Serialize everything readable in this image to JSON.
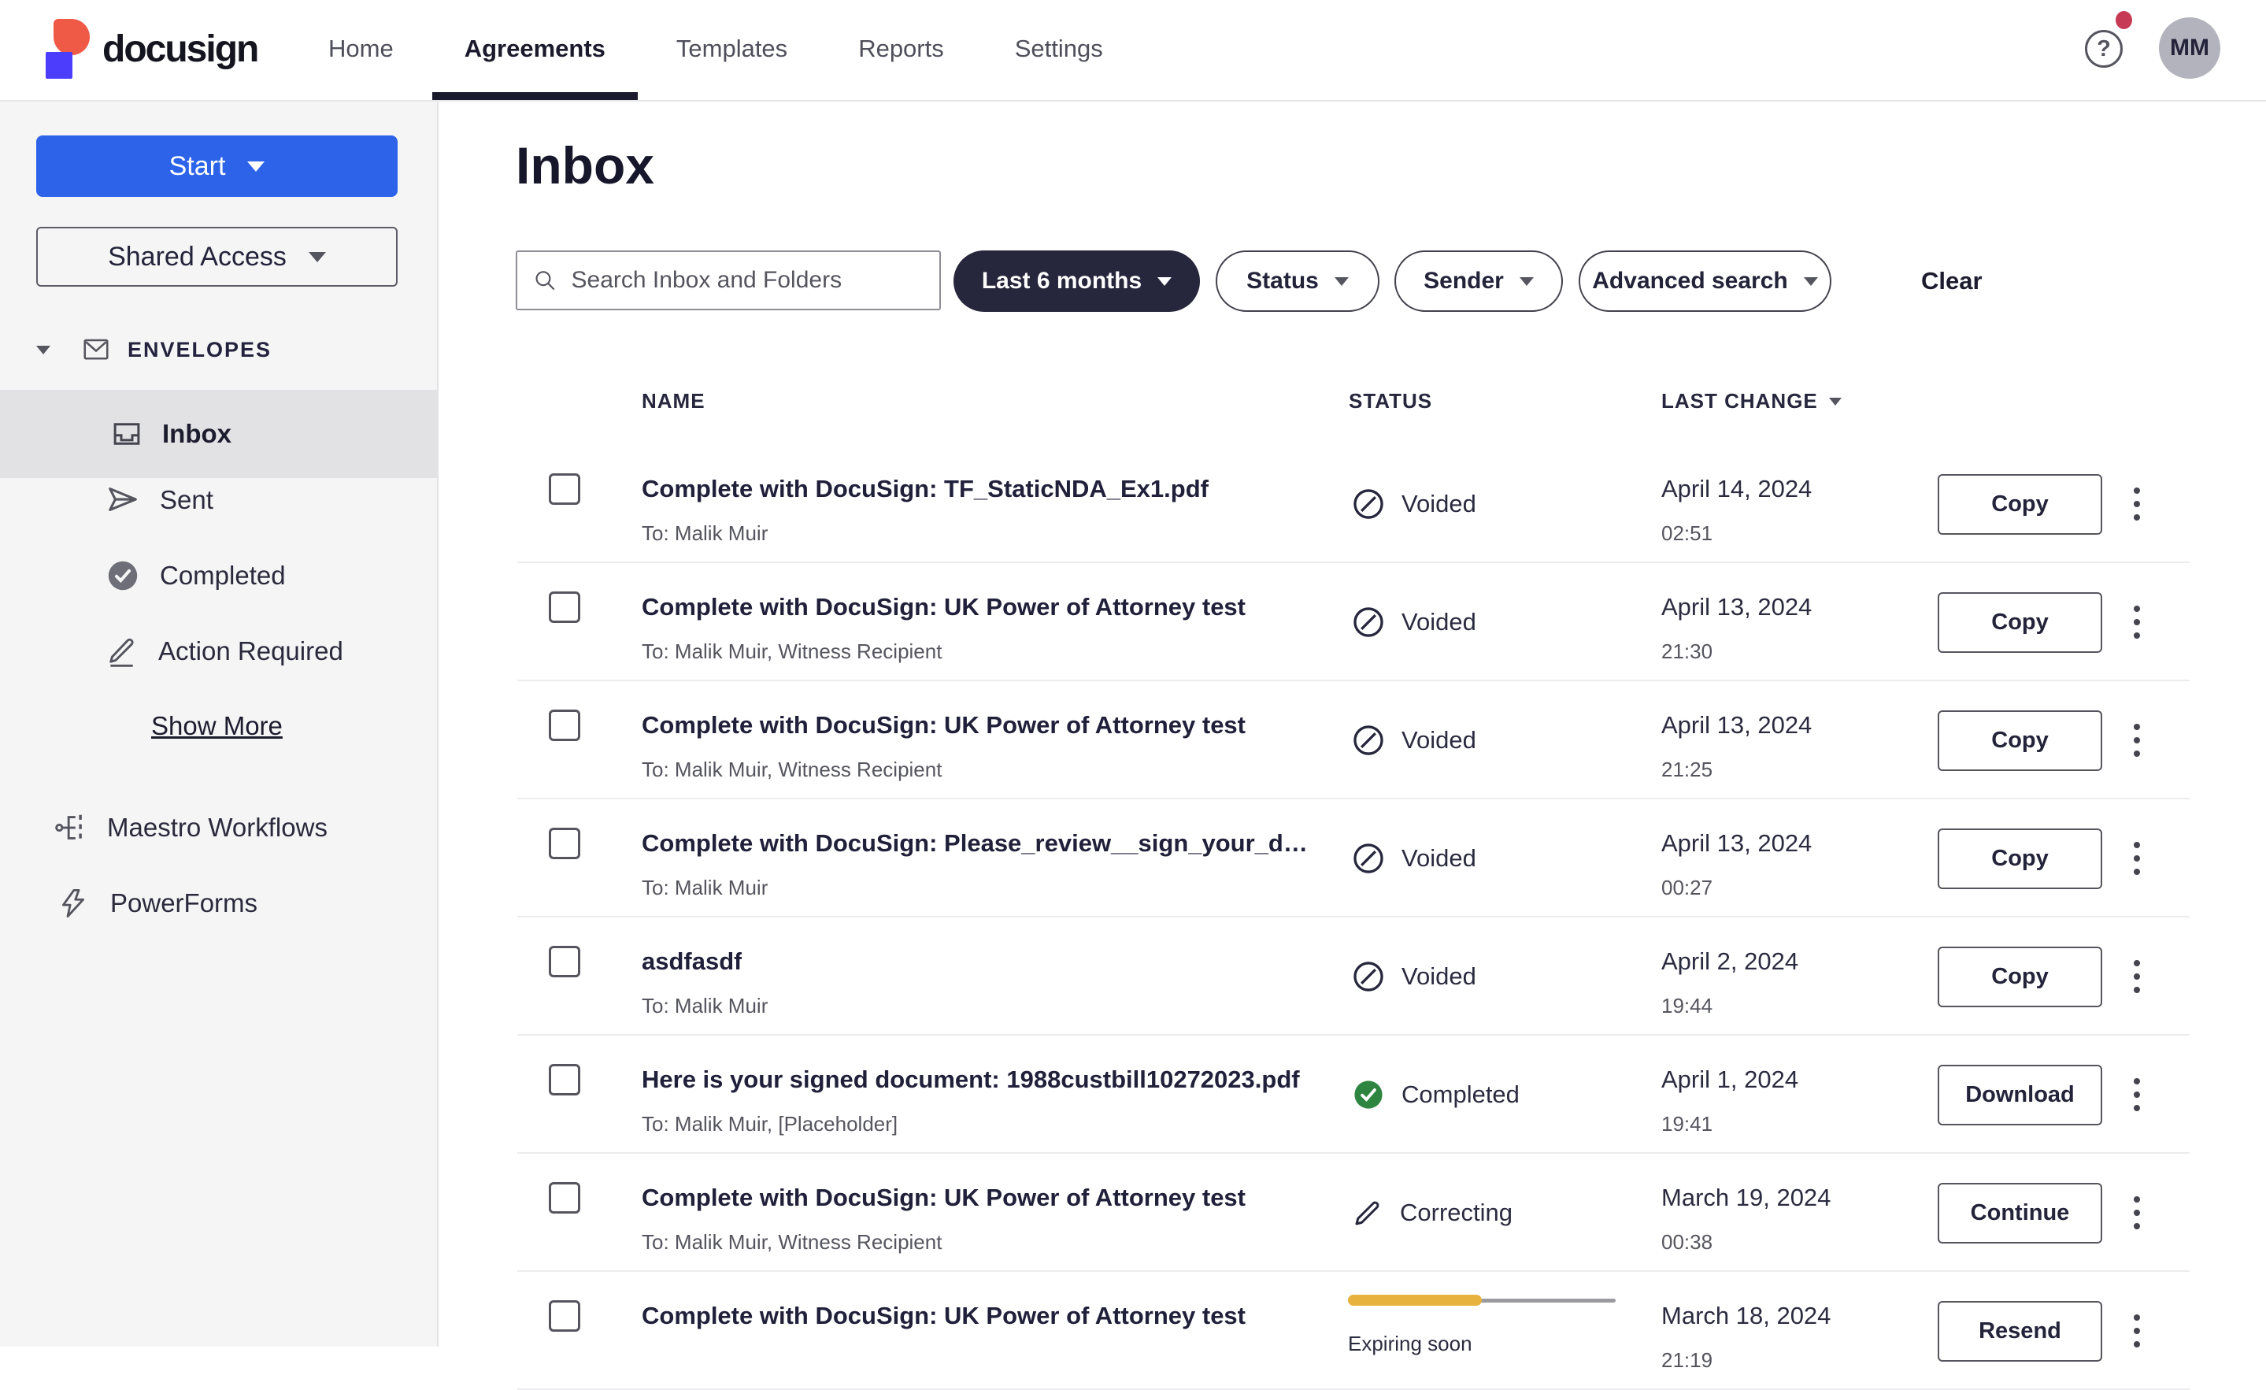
{
  "brand": {
    "name": "docusign"
  },
  "nav": {
    "items": [
      {
        "label": "Home",
        "active": false
      },
      {
        "label": "Agreements",
        "active": true
      },
      {
        "label": "Templates",
        "active": false
      },
      {
        "label": "Reports",
        "active": false
      },
      {
        "label": "Settings",
        "active": false
      }
    ]
  },
  "topbar": {
    "help_icon": "question-mark-circle",
    "notification_dot": true,
    "avatar_initials": "MM"
  },
  "sidebar": {
    "start_label": "Start",
    "shared_access_label": "Shared Access",
    "section_label": "ENVELOPES",
    "items": [
      {
        "label": "Inbox",
        "icon": "inbox-tray-icon",
        "active": true
      },
      {
        "label": "Sent",
        "icon": "paper-plane-icon",
        "active": false
      },
      {
        "label": "Completed",
        "icon": "check-circle-icon",
        "active": false
      },
      {
        "label": "Action Required",
        "icon": "pen-icon",
        "active": false
      }
    ],
    "show_more_label": "Show More",
    "tools": [
      {
        "label": "Maestro Workflows",
        "icon": "workflow-icon"
      },
      {
        "label": "PowerForms",
        "icon": "lightning-bolt-icon"
      }
    ]
  },
  "main": {
    "title": "Inbox",
    "search": {
      "placeholder": "Search Inbox and Folders",
      "icon": "search-icon"
    },
    "filters": {
      "date_range": "Last 6 months",
      "status": "Status",
      "sender": "Sender",
      "advanced": "Advanced search",
      "clear": "Clear"
    },
    "table": {
      "headers": {
        "name": "NAME",
        "status": "STATUS",
        "last_change": "LAST CHANGE",
        "sort_icon": "caret-down-icon"
      },
      "rows": [
        {
          "name": "Complete with DocuSign: TF_StaticNDA_Ex1.pdf",
          "to": "To: Malik Muir",
          "status": {
            "type": "voided",
            "label": "Voided",
            "icon": "voided-icon"
          },
          "date": "April 14, 2024",
          "time": "02:51",
          "action": "Copy"
        },
        {
          "name": "Complete with DocuSign: UK Power of Attorney test",
          "to": "To: Malik Muir, Witness Recipient",
          "status": {
            "type": "voided",
            "label": "Voided",
            "icon": "voided-icon"
          },
          "date": "April 13, 2024",
          "time": "21:30",
          "action": "Copy"
        },
        {
          "name": "Complete with DocuSign: UK Power of Attorney test",
          "to": "To: Malik Muir, Witness Recipient",
          "status": {
            "type": "voided",
            "label": "Voided",
            "icon": "voided-icon"
          },
          "date": "April 13, 2024",
          "time": "21:25",
          "action": "Copy"
        },
        {
          "name": "Complete with DocuSign: Please_review__sign_your_d…",
          "to": "To: Malik Muir",
          "status": {
            "type": "voided",
            "label": "Voided",
            "icon": "voided-icon"
          },
          "date": "April 13, 2024",
          "time": "00:27",
          "action": "Copy"
        },
        {
          "name": "asdfasdf",
          "to": "To: Malik Muir",
          "status": {
            "type": "voided",
            "label": "Voided",
            "icon": "voided-icon"
          },
          "date": "April 2, 2024",
          "time": "19:44",
          "action": "Copy"
        },
        {
          "name": "Here is your signed document: 1988custbill10272023.pdf",
          "to": "To: Malik Muir, [Placeholder]",
          "status": {
            "type": "completed",
            "label": "Completed",
            "icon": "completed-icon"
          },
          "date": "April 1, 2024",
          "time": "19:41",
          "action": "Download"
        },
        {
          "name": "Complete with DocuSign: UK Power of Attorney test",
          "to": "To: Malik Muir, Witness Recipient",
          "status": {
            "type": "correcting",
            "label": "Correcting",
            "icon": "correcting-pen-icon"
          },
          "date": "March 19, 2024",
          "time": "00:38",
          "action": "Continue"
        },
        {
          "name": "Complete with DocuSign: UK Power of Attorney test",
          "to": "",
          "status": {
            "type": "expiring",
            "label": "Expiring soon",
            "icon": "progress-bar",
            "progress_percent": 50
          },
          "date": "March 18, 2024",
          "time": "21:19",
          "action": "Resend"
        }
      ]
    }
  },
  "colors": {
    "accent_blue": "#2c63e9",
    "ink": "#26263c",
    "completed_green": "#2e8540",
    "expiring_amber": "#e7b23e",
    "notification_red": "#c63a55",
    "sidebar_bg": "#f5f5f6",
    "active_item_bg": "#e2e2e5"
  }
}
